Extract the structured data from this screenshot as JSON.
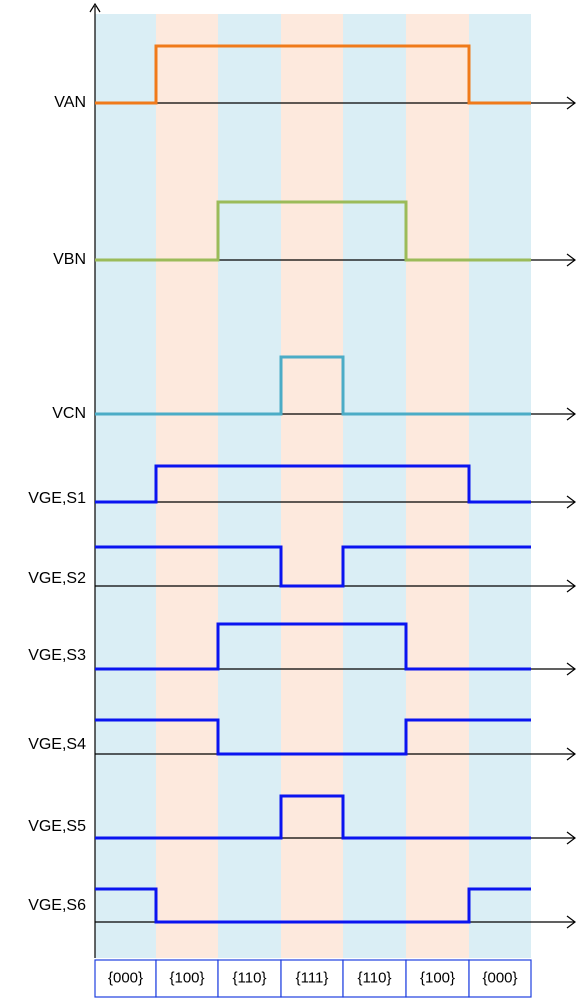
{
  "diagram": {
    "band_colors": [
      "#daeef5",
      "#fde9dd"
    ],
    "axis_color": "#000000",
    "state_box_color": "#1f3fe0",
    "states": [
      "{000}",
      "{100}",
      "{110}",
      "{111}",
      "{110}",
      "{100}",
      "{000}"
    ],
    "signals": [
      {
        "label": "VAN",
        "color": "#f07a1a",
        "levels": [
          0,
          1,
          1,
          1,
          1,
          1,
          0
        ]
      },
      {
        "label": "VBN",
        "color": "#9bbb59",
        "levels": [
          0,
          0,
          1,
          1,
          1,
          0,
          0
        ]
      },
      {
        "label": "VCN",
        "color": "#4bacc6",
        "levels": [
          0,
          0,
          0,
          1,
          0,
          0,
          0
        ]
      },
      {
        "label": "VGE,S1",
        "color": "#0a14f0",
        "levels": [
          0,
          1,
          1,
          1,
          1,
          1,
          0
        ]
      },
      {
        "label": "VGE,S2",
        "color": "#0a14f0",
        "levels": [
          1,
          1,
          1,
          0,
          1,
          1,
          1
        ]
      },
      {
        "label": "VGE,S3",
        "color": "#0a14f0",
        "levels": [
          0,
          0,
          1,
          1,
          1,
          0,
          0
        ]
      },
      {
        "label": "VGE,S4",
        "color": "#0a14f0",
        "levels": [
          1,
          1,
          0,
          0,
          0,
          1,
          1
        ]
      },
      {
        "label": "VGE,S5",
        "color": "#0a14f0",
        "levels": [
          0,
          0,
          0,
          1,
          0,
          0,
          0
        ]
      },
      {
        "label": "VGE,S6",
        "color": "#0a14f0",
        "levels": [
          1,
          0,
          0,
          0,
          0,
          0,
          1
        ]
      }
    ]
  }
}
